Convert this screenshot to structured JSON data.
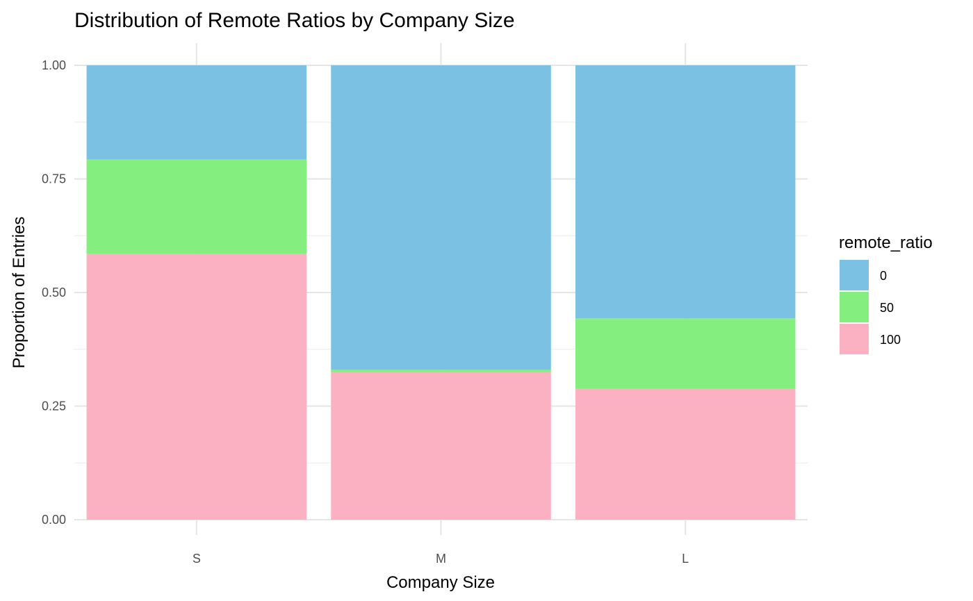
{
  "chart_data": {
    "type": "bar",
    "stacked": true,
    "title": "Distribution of Remote Ratios by Company Size",
    "xlabel": "Company Size",
    "ylabel": "Proportion of Entries",
    "categories": [
      "S",
      "M",
      "L"
    ],
    "ylim": [
      0,
      1
    ],
    "yticks": [
      "0.00",
      "0.25",
      "0.50",
      "0.75",
      "1.00"
    ],
    "grid": true,
    "legend_title": "remote_ratio",
    "legend_position": "right",
    "series": [
      {
        "name": "0",
        "color": "#7AC1E4",
        "values": [
          0.207,
          0.67,
          0.557
        ]
      },
      {
        "name": "50",
        "color": "#84EE7E",
        "values": [
          0.208,
          0.005,
          0.154
        ]
      },
      {
        "name": "100",
        "color": "#FCB1C3",
        "values": [
          0.585,
          0.325,
          0.289
        ]
      }
    ]
  }
}
